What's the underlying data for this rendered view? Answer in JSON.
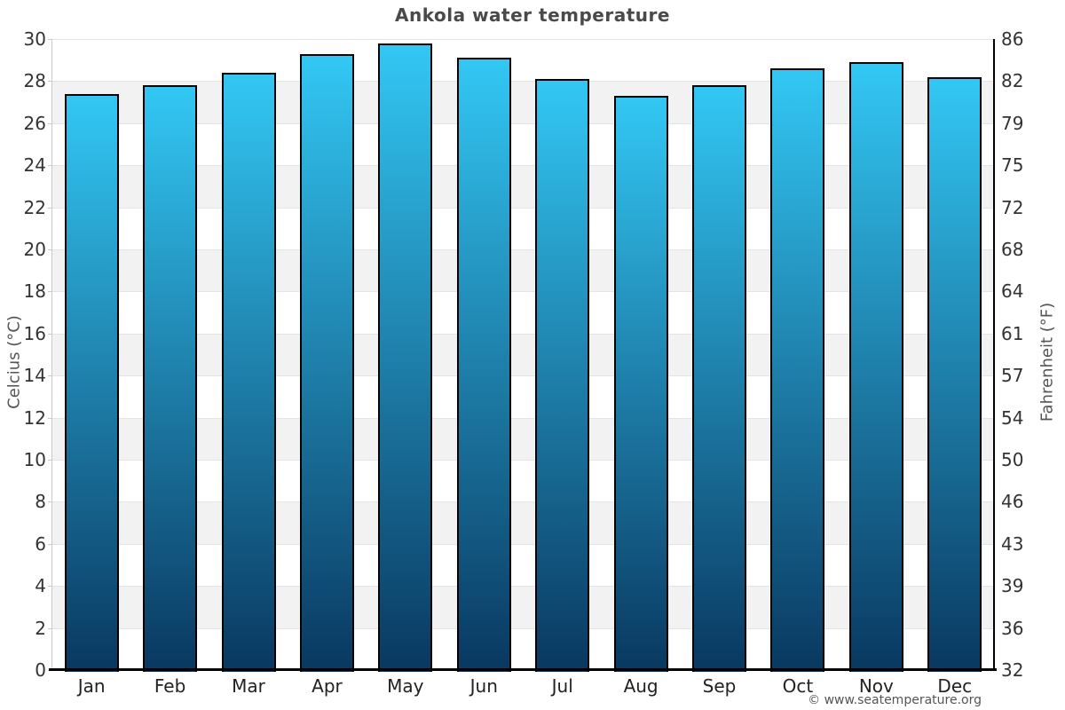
{
  "title": "Ankola water temperature",
  "credit": "© www.seatemperature.org",
  "chart_data": {
    "type": "bar",
    "title": "Ankola water temperature",
    "categories": [
      "Jan",
      "Feb",
      "Mar",
      "Apr",
      "May",
      "Jun",
      "Jul",
      "Aug",
      "Sep",
      "Oct",
      "Nov",
      "Dec"
    ],
    "values": [
      27.4,
      27.8,
      28.4,
      29.3,
      29.8,
      29.1,
      28.1,
      27.3,
      27.8,
      28.6,
      28.9,
      28.2
    ],
    "unit": "°C",
    "ylabel_left": "Celcius (°C)",
    "ylabel_right": "Fahrenheit (°F)",
    "ylim_celsius": [
      0,
      30
    ],
    "yticks_celsius": [
      0,
      2,
      4,
      6,
      8,
      10,
      12,
      14,
      16,
      18,
      20,
      22,
      24,
      26,
      28,
      30
    ],
    "yticks_fahrenheit": [
      32,
      36,
      39,
      43,
      46,
      50,
      54,
      57,
      61,
      64,
      68,
      72,
      75,
      79,
      82,
      86
    ],
    "legend": "none",
    "grid": "alternating horizontal gray/white bands every 2°C",
    "colors": {
      "bar_gradient_top": "#33c7f4",
      "bar_gradient_bottom": "#093860",
      "bar_border": "#000000",
      "band_gray": "#f2f2f2",
      "gridline": "#e4e4e4",
      "left_axis_line": "#c9c9c9",
      "right_axis_line": "#000000",
      "bottom_axis_line": "#000000",
      "title_text": "#4a4a4a",
      "tick_text": "#333333",
      "month_text": "#222222",
      "axis_title_text": "#555555",
      "credit_text": "#555555"
    }
  }
}
